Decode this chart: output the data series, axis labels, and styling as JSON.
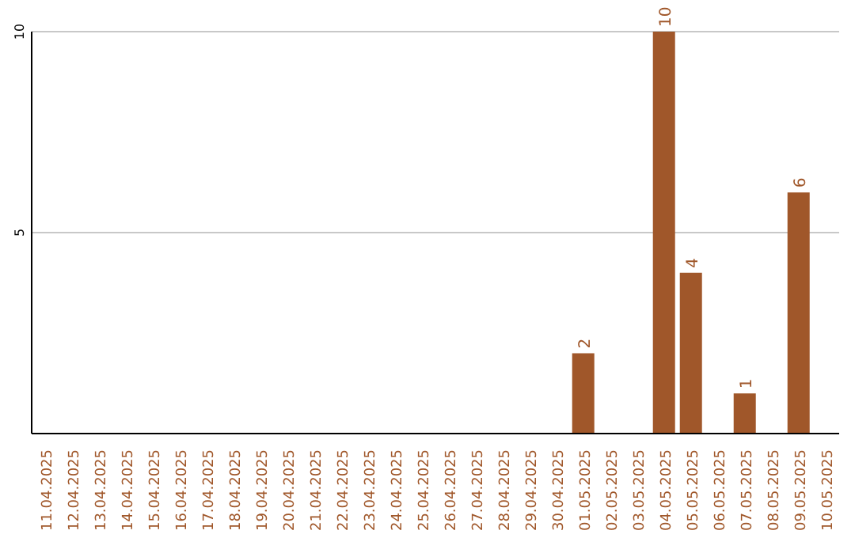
{
  "chart_data": {
    "type": "bar",
    "categories": [
      "11.04.2025",
      "12.04.2025",
      "13.04.2025",
      "14.04.2025",
      "15.04.2025",
      "16.04.2025",
      "17.04.2025",
      "18.04.2025",
      "19.04.2025",
      "20.04.2025",
      "21.04.2025",
      "22.04.2025",
      "23.04.2025",
      "24.04.2025",
      "25.04.2025",
      "26.04.2025",
      "27.04.2025",
      "28.04.2025",
      "29.04.2025",
      "30.04.2025",
      "01.05.2025",
      "02.05.2025",
      "03.05.2025",
      "04.05.2025",
      "05.05.2025",
      "06.05.2025",
      "07.05.2025",
      "08.05.2025",
      "09.05.2025",
      "10.05.2025"
    ],
    "values": [
      0,
      0,
      0,
      0,
      0,
      0,
      0,
      0,
      0,
      0,
      0,
      0,
      0,
      0,
      0,
      0,
      0,
      0,
      0,
      0,
      2,
      0,
      0,
      10,
      4,
      0,
      1,
      0,
      6,
      0
    ],
    "value_labels": [
      null,
      null,
      null,
      null,
      null,
      null,
      null,
      null,
      null,
      null,
      null,
      null,
      null,
      null,
      null,
      null,
      null,
      null,
      null,
      null,
      "2",
      null,
      null,
      "10",
      "4",
      null,
      "1",
      null,
      "6",
      null
    ],
    "color": "#a0572a",
    "ylim": [
      0,
      10
    ],
    "yticks": [
      5,
      10
    ],
    "grid": "y"
  }
}
